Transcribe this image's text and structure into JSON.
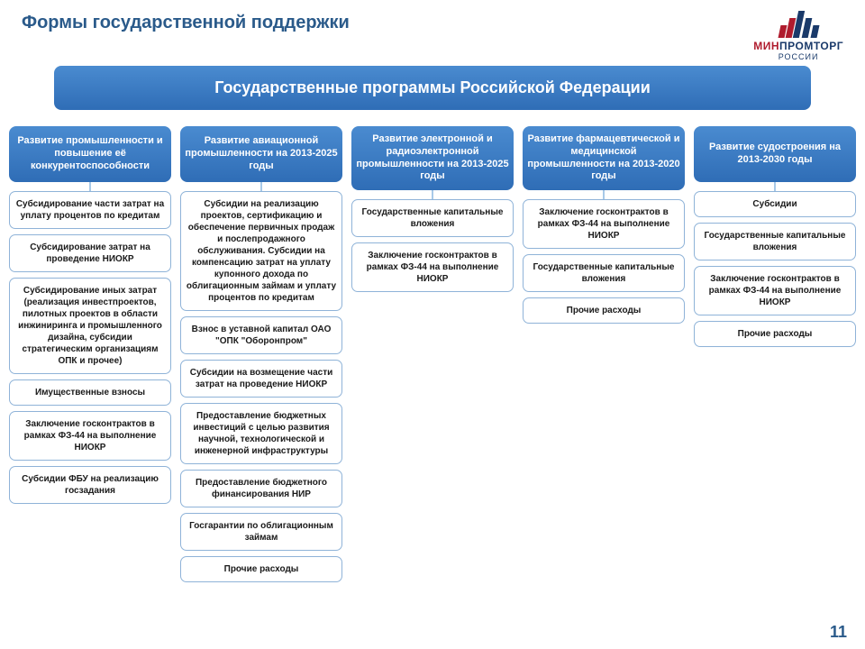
{
  "page_title": "Формы государственной поддержки",
  "logo": {
    "bars": [
      {
        "h": 14,
        "color": "#b01c2e"
      },
      {
        "h": 22,
        "color": "#b01c2e"
      },
      {
        "h": 30,
        "color": "#1a3a6a"
      },
      {
        "h": 22,
        "color": "#1a3a6a"
      },
      {
        "h": 14,
        "color": "#1a3a6a"
      }
    ],
    "text_parts": [
      {
        "t": "МИН",
        "cls": "red"
      },
      {
        "t": "ПРОМ",
        "cls": "blue"
      },
      {
        "t": "ТОРГ",
        "cls": "blue"
      }
    ],
    "subtitle": "РОССИИ"
  },
  "main_banner": "Государственные программы Российской Федерации",
  "columns": [
    {
      "header": "Развитие промышленности и повышение её конкурентоспособности",
      "items": [
        "Субсидирование части затрат на уплату процентов по кредитам",
        "Субсидирование затрат на проведение НИОКР",
        "Субсидирование иных затрат (реализация инвестпроектов, пилотных проектов в области инжиниринга и промышленного дизайна, субсидии стратегическим организациям ОПК и прочее)",
        "Имущественные взносы",
        "Заключение госконтрактов в рамках ФЗ-44 на выполнение НИОКР",
        "Субсидии ФБУ на реализацию госзадания"
      ]
    },
    {
      "header": "Развитие авиационной промышленности на 2013-2025 годы",
      "items": [
        "Субсидии на реализацию проектов, сертификацию и обеспечение первичных продаж и послепродажного обслуживания. Субсидии на компенсацию затрат на уплату купонного дохода по облигационным займам и уплату процентов по кредитам",
        "Взнос в уставной капитал ОАО \"ОПК \"Оборонпром\"",
        "Субсидии на возмещение части затрат на проведение НИОКР",
        "Предоставление бюджетных инвестиций с целью развития научной, технологической и инженерной инфраструктуры",
        "Предоставление бюджетного финансирования НИР",
        "Госгарантии по облигационным займам",
        "Прочие расходы"
      ]
    },
    {
      "header": "Развитие электронной и радиоэлектронной промышленности на 2013-2025 годы",
      "items": [
        "Государственные капитальные вложения",
        "Заключение госконтрактов в рамках ФЗ-44 на выполнение НИОКР"
      ]
    },
    {
      "header": "Развитие фармацевтической и медицинской промышленности на 2013-2020 годы",
      "items": [
        "Заключение госконтрактов в рамках ФЗ-44 на выполнение НИОКР",
        "Государственные капитальные вложения",
        "Прочие расходы"
      ]
    },
    {
      "header": "Развитие судостроения на 2013-2030 годы",
      "items": [
        "Субсидии",
        "Государственные капитальные вложения",
        "Заключение госконтрактов в рамках ФЗ-44 на выполнение НИОКР",
        "Прочие расходы"
      ]
    }
  ],
  "page_number": "11",
  "style": {
    "gradient_top": "#4a8bd0",
    "gradient_bottom": "#2f6db6",
    "item_border": "#8fb3d8",
    "title_color": "#2a5a8a"
  }
}
